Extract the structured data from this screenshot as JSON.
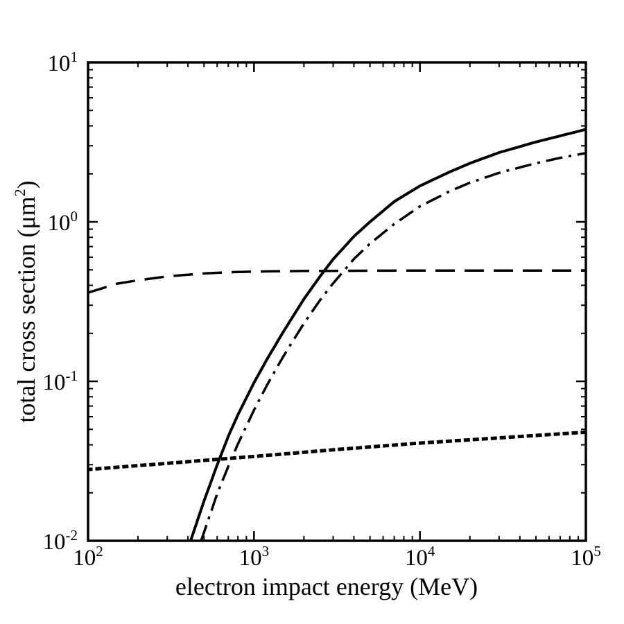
{
  "chart_data": {
    "type": "line",
    "title": "",
    "xlabel": "electron impact energy (MeV)",
    "ylabel": "total cross section (μm²)",
    "ylabel_parts": {
      "prefix": "total cross section (μm",
      "sup": "2",
      "suffix": ")"
    },
    "xscale": "log",
    "yscale": "log",
    "xlim": [
      100,
      100000
    ],
    "ylim": [
      0.01,
      10
    ],
    "x_ticks": [
      {
        "value": 100,
        "base": "10",
        "exp": "2"
      },
      {
        "value": 1000,
        "base": "10",
        "exp": "3"
      },
      {
        "value": 10000,
        "base": "10",
        "exp": "4"
      },
      {
        "value": 100000,
        "base": "10",
        "exp": "5"
      }
    ],
    "y_ticks": [
      {
        "value": 0.01,
        "base": "10",
        "exp": "-2"
      },
      {
        "value": 0.1,
        "base": "10",
        "exp": "-1"
      },
      {
        "value": 1,
        "base": "10",
        "exp": "0"
      },
      {
        "value": 10,
        "base": "10",
        "exp": "1"
      }
    ],
    "grid": false,
    "legend": "none",
    "series": [
      {
        "name": "total (solid)",
        "style": "solid",
        "x": [
          415,
          500,
          600,
          700,
          800,
          1000,
          1200,
          1500,
          2000,
          2500,
          3000,
          4000,
          5000,
          7000,
          10000,
          15000,
          20000,
          30000,
          50000,
          70000,
          100000
        ],
        "y": [
          0.01,
          0.0178,
          0.0299,
          0.0452,
          0.0617,
          0.098,
          0.138,
          0.204,
          0.328,
          0.455,
          0.583,
          0.81,
          1.0,
          1.34,
          1.68,
          2.05,
          2.33,
          2.72,
          3.17,
          3.46,
          3.8
        ]
      },
      {
        "name": "dash-dot",
        "style": "dashdot",
        "x": [
          480,
          600,
          700,
          800,
          1000,
          1200,
          1500,
          2000,
          2500,
          3000,
          4000,
          5000,
          7000,
          10000,
          15000,
          20000,
          30000,
          50000,
          70000,
          100000
        ],
        "y": [
          0.01,
          0.0197,
          0.0293,
          0.0405,
          0.066,
          0.095,
          0.143,
          0.231,
          0.323,
          0.412,
          0.585,
          0.73,
          0.97,
          1.25,
          1.55,
          1.76,
          2.03,
          2.33,
          2.52,
          2.7
        ]
      },
      {
        "name": "dashed",
        "style": "dashed",
        "x": [
          100,
          150,
          200,
          300,
          500,
          700,
          1000,
          2000,
          5000,
          10000,
          30000,
          100000
        ],
        "y": [
          0.36,
          0.41,
          0.43,
          0.455,
          0.475,
          0.483,
          0.488,
          0.492,
          0.494,
          0.495,
          0.495,
          0.495
        ]
      },
      {
        "name": "dotted",
        "style": "dotted",
        "x": [
          100,
          300,
          1000,
          3000,
          10000,
          30000,
          100000
        ],
        "y": [
          0.028,
          0.0306,
          0.0338,
          0.0372,
          0.041,
          0.0442,
          0.048
        ]
      }
    ],
    "colors": {
      "line": "#000000",
      "background": "#ffffff"
    }
  }
}
